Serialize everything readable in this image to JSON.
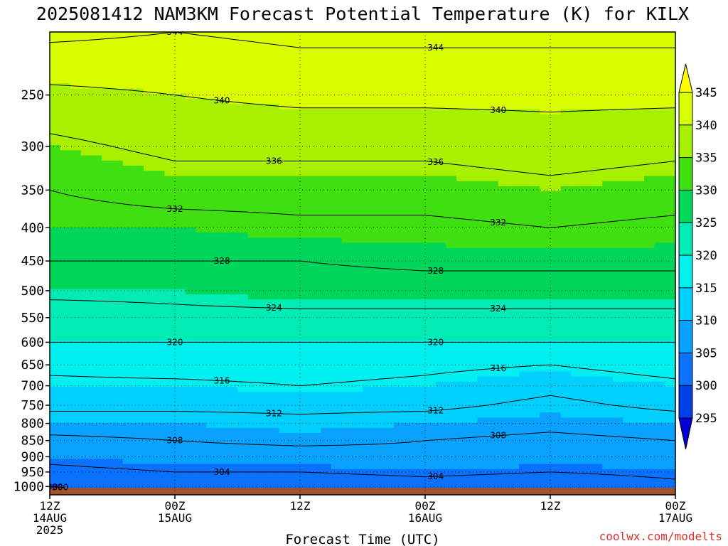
{
  "chart_data": {
    "type": "heatmap",
    "title": "2025081412 NAM3KM Forecast Potential Temperature (K) for KILX",
    "xlabel": "Forecast Time (UTC)",
    "credit": "coolwx.com/modelts",
    "x_hours_range": [
      0,
      60
    ],
    "x_ticks": [
      {
        "hour": 0,
        "time": "12Z",
        "day": "14AUG",
        "year": "2025"
      },
      {
        "hour": 12,
        "time": "00Z",
        "day": "15AUG",
        "year": ""
      },
      {
        "hour": 24,
        "time": "12Z",
        "day": "",
        "year": ""
      },
      {
        "hour": 36,
        "time": "00Z",
        "day": "16AUG",
        "year": ""
      },
      {
        "hour": 48,
        "time": "12Z",
        "day": "",
        "year": ""
      },
      {
        "hour": 60,
        "time": "00Z",
        "day": "17AUG",
        "year": ""
      }
    ],
    "y_axis": {
      "scale": "log-pressure",
      "units": "hPa",
      "range": [
        1030,
        200
      ],
      "ticks": [
        "250",
        "300",
        "350",
        "400",
        "450",
        "500",
        "550",
        "600",
        "650",
        "700",
        "750",
        "800",
        "850",
        "900",
        "950",
        "1000"
      ]
    },
    "colorbar": {
      "ticks": [
        "345",
        "340",
        "335",
        "330",
        "325",
        "320",
        "315",
        "310",
        "305",
        "300",
        "295"
      ],
      "levels": [
        295,
        300,
        305,
        310,
        315,
        320,
        325,
        330,
        335,
        340,
        345
      ],
      "colors": [
        "#0000d0",
        "#0040e8",
        "#0a72ff",
        "#0aa2ff",
        "#00d0ff",
        "#00f0f0",
        "#00ecb4",
        "#00d75a",
        "#40e010",
        "#a6f000",
        "#d8ff00",
        "#ffff00"
      ]
    },
    "surface": {
      "pressure_hpa": 1005,
      "color": "#a0522d"
    },
    "contours": [
      {
        "k": 344,
        "label": "344"
      },
      {
        "k": 340,
        "label": "340"
      },
      {
        "k": 336,
        "label": "336"
      },
      {
        "k": 332,
        "label": "332"
      },
      {
        "k": 328,
        "label": "328"
      },
      {
        "k": 324,
        "label": "324"
      },
      {
        "k": 320,
        "label": "320"
      },
      {
        "k": 316,
        "label": "316"
      },
      {
        "k": 312,
        "label": "312"
      },
      {
        "k": 308,
        "label": "308"
      },
      {
        "k": 304,
        "label": "304"
      },
      {
        "k": 300,
        "label": "300"
      }
    ],
    "profiles": [
      {
        "hour": 0,
        "pressure_hpa": [
          1000,
          950,
          900,
          850,
          800,
          750,
          700,
          650,
          600,
          550,
          500,
          450,
          400,
          350,
          300,
          250,
          200
        ],
        "theta_k": [
          300,
          303,
          305,
          307,
          310,
          313,
          315,
          317,
          320,
          322,
          325,
          328,
          330,
          332,
          335,
          339,
          345
        ]
      },
      {
        "hour": 12,
        "pressure_hpa": [
          1000,
          950,
          900,
          850,
          800,
          750,
          700,
          650,
          600,
          550,
          500,
          450,
          400,
          350,
          300,
          250,
          200
        ],
        "theta_k": [
          302,
          304,
          306,
          308,
          310,
          313,
          315,
          318,
          320,
          323,
          325,
          328,
          330,
          334,
          337,
          340,
          344
        ]
      },
      {
        "hour": 24,
        "pressure_hpa": [
          1000,
          950,
          900,
          850,
          800,
          750,
          700,
          650,
          600,
          550,
          500,
          450,
          400,
          350,
          300,
          250,
          200
        ],
        "theta_k": [
          301,
          304,
          306,
          309,
          311,
          313,
          316,
          318,
          320,
          323,
          326,
          328,
          331,
          334,
          337,
          341,
          345
        ]
      },
      {
        "hour": 36,
        "pressure_hpa": [
          1000,
          950,
          900,
          850,
          800,
          750,
          700,
          650,
          600,
          550,
          500,
          450,
          400,
          350,
          300,
          250,
          200
        ],
        "theta_k": [
          302,
          305,
          307,
          308,
          310,
          313,
          315,
          317,
          320,
          323,
          326,
          329,
          331,
          334,
          337,
          341,
          345
        ]
      },
      {
        "hour": 48,
        "pressure_hpa": [
          1000,
          950,
          900,
          850,
          800,
          750,
          700,
          650,
          600,
          550,
          500,
          450,
          400,
          350,
          300,
          250,
          200
        ],
        "theta_k": [
          301,
          304,
          306,
          307,
          309,
          311,
          313,
          316,
          320,
          323,
          326,
          329,
          332,
          335,
          338,
          341,
          345
        ]
      },
      {
        "hour": 60,
        "pressure_hpa": [
          1000,
          950,
          900,
          850,
          800,
          750,
          700,
          650,
          600,
          550,
          500,
          450,
          400,
          350,
          300,
          250,
          200
        ],
        "theta_k": [
          303,
          305,
          306,
          308,
          310,
          313,
          315,
          318,
          320,
          323,
          326,
          329,
          331,
          334,
          337,
          341,
          345
        ]
      }
    ]
  }
}
